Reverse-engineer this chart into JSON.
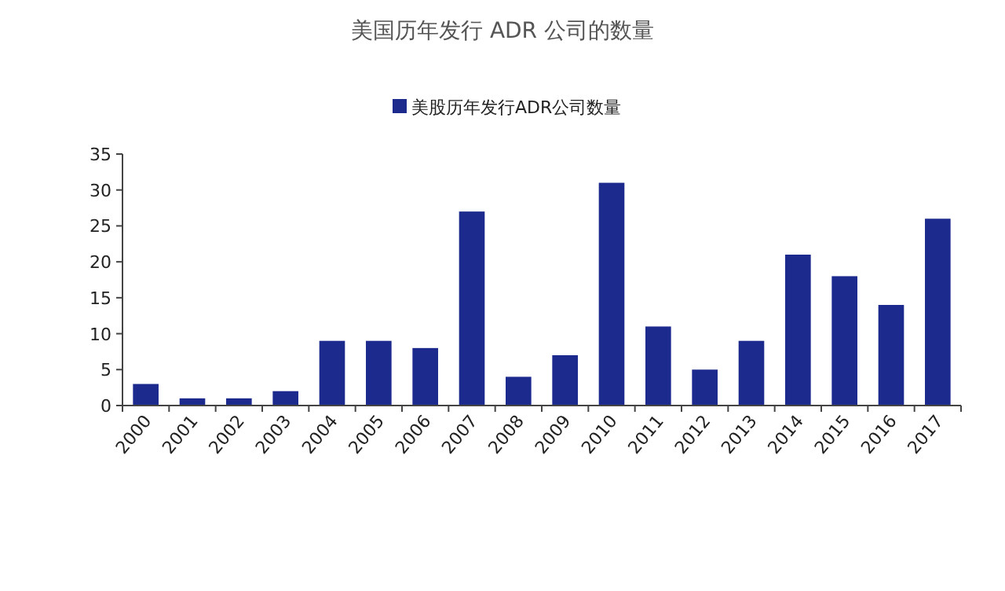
{
  "chart_data": {
    "type": "bar",
    "title": "美国历年发行 ADR 公司的数量",
    "categories": [
      "2000",
      "2001",
      "2002",
      "2003",
      "2004",
      "2005",
      "2006",
      "2007",
      "2008",
      "2009",
      "2010",
      "2011",
      "2012",
      "2013",
      "2014",
      "2015",
      "2016",
      "2017"
    ],
    "series": [
      {
        "name": "美股历年发行ADR公司数量",
        "color": "#1b2a8c",
        "values": [
          3,
          1,
          1,
          2,
          9,
          9,
          8,
          27,
          4,
          7,
          31,
          11,
          5,
          9,
          21,
          18,
          14,
          26
        ]
      }
    ],
    "ylim": [
      0,
      35
    ],
    "yticks": [
      0,
      5,
      10,
      15,
      20,
      25,
      30,
      35
    ],
    "legend": "top",
    "grid": false
  }
}
